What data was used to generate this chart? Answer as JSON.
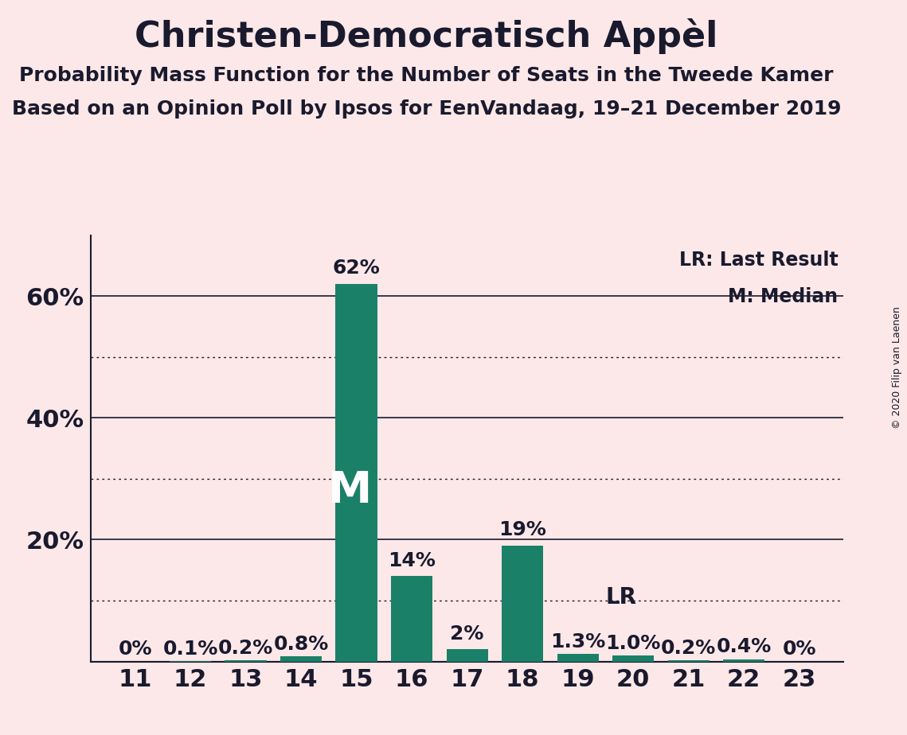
{
  "title": "Christen-Democratisch Appèl",
  "subtitle1": "Probability Mass Function for the Number of Seats in the Tweede Kamer",
  "subtitle2": "Based on an Opinion Poll by Ipsos for EenVandaag, 19–21 December 2019",
  "copyright": "© 2020 Filip van Laenen",
  "seats": [
    11,
    12,
    13,
    14,
    15,
    16,
    17,
    18,
    19,
    20,
    21,
    22,
    23
  ],
  "probabilities": [
    0.0,
    0.1,
    0.2,
    0.8,
    62.0,
    14.0,
    2.0,
    19.0,
    1.3,
    1.0,
    0.2,
    0.4,
    0.0
  ],
  "bar_labels": [
    "0%",
    "0.1%",
    "0.2%",
    "0.8%",
    "62%",
    "14%",
    "2%",
    "19%",
    "1.3%",
    "1.0%",
    "0.2%",
    "0.4%",
    "0%"
  ],
  "bar_color": "#1b8068",
  "bg_color": "#fce8e8",
  "median_seat": 15,
  "lr_seat": 19,
  "legend_lr": "LR: Last Result",
  "legend_m": "M: Median",
  "yticks": [
    20,
    40,
    60
  ],
  "ytick_labels": [
    "20%",
    "40%",
    "60%"
  ],
  "yticks_solid": [
    20,
    40,
    60
  ],
  "yticks_dotted": [
    10,
    30,
    50
  ],
  "ylim": [
    0,
    70
  ],
  "title_fontsize": 32,
  "subtitle_fontsize": 18,
  "tick_label_fontsize": 22,
  "bar_label_fontsize": 18,
  "text_color": "#1a1a2e"
}
